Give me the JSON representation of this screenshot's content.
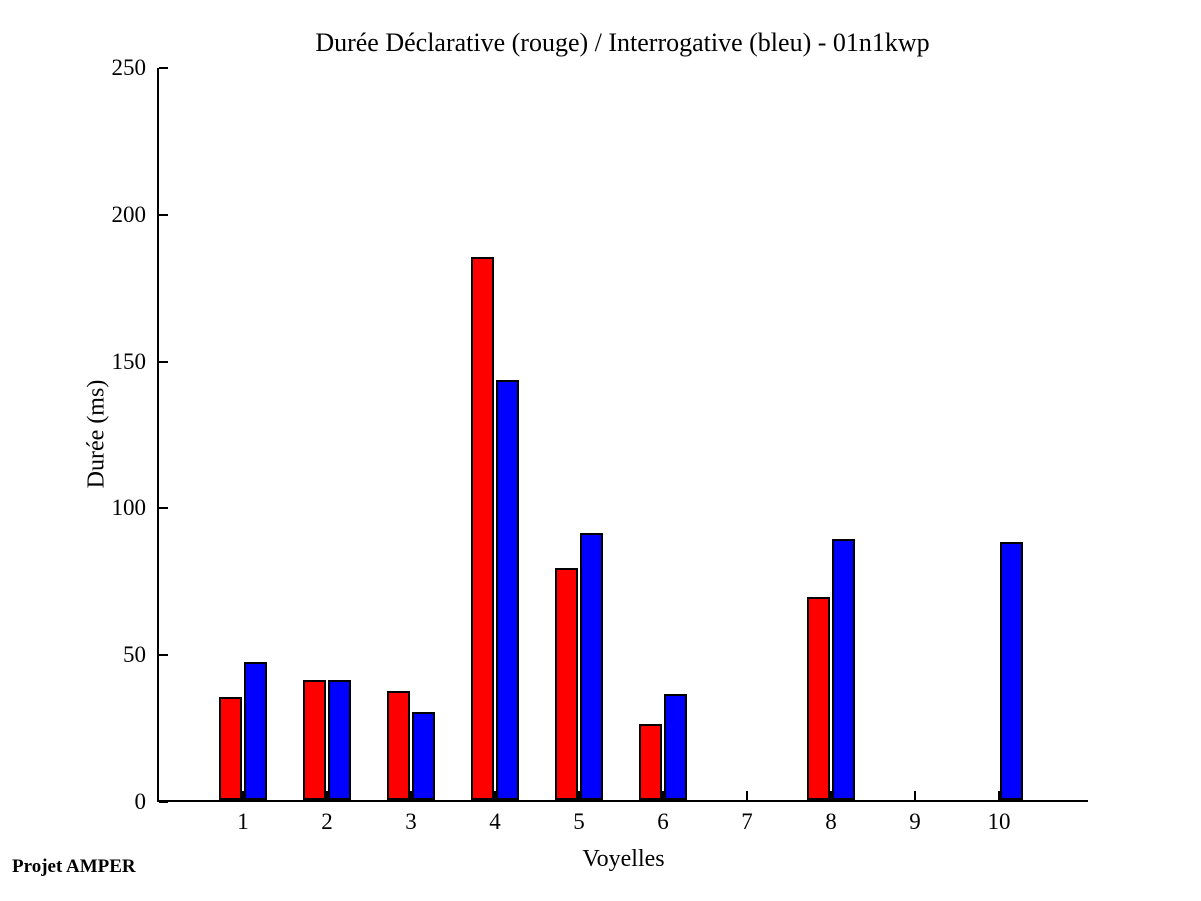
{
  "title": "Durée Déclarative (rouge) / Interrogative (bleu) - 01n1kwp",
  "footer": "Projet AMPER",
  "colors": {
    "declarative": "#ff0000",
    "interrogative": "#0000ff",
    "axis": "#000000",
    "background": "#ffffff"
  },
  "chart_data": {
    "type": "bar",
    "title": "Durée Déclarative (rouge) / Interrogative (bleu) - 01n1kwp",
    "xlabel": "Voyelles",
    "ylabel": "Durée (ms)",
    "categories": [
      "1",
      "2",
      "3",
      "4",
      "5",
      "6",
      "7",
      "8",
      "9",
      "10"
    ],
    "series": [
      {
        "name": "Déclarative",
        "color": "#ff0000",
        "values": [
          35,
          41,
          37,
          185,
          79,
          26,
          0,
          69,
          0,
          0
        ]
      },
      {
        "name": "Interrogative",
        "color": "#0000ff",
        "values": [
          47,
          41,
          30,
          143,
          91,
          36,
          0,
          89,
          0,
          88
        ]
      }
    ],
    "ylim": [
      0,
      250
    ],
    "yticks": [
      0,
      50,
      100,
      150,
      200,
      250
    ],
    "grid": false,
    "legend_position": "encoded-in-title",
    "bar_edge_color": "#000000"
  }
}
